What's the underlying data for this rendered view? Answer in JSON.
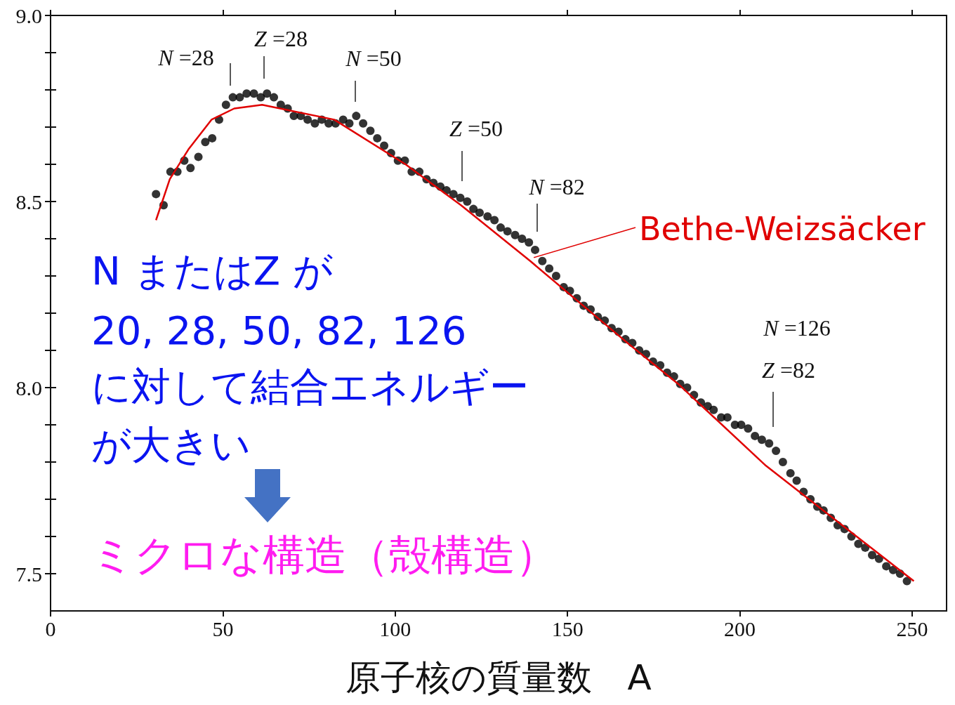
{
  "chart_data": {
    "type": "scatter",
    "xlabel": "原子核の質量数　A",
    "xlim": [
      0,
      260
    ],
    "xticks": [
      0,
      50,
      100,
      150,
      200,
      250
    ],
    "ylim": [
      7.4,
      9.0
    ],
    "yticks": [
      {
        "value": 7.5,
        "label": "7.5"
      },
      {
        "value": 7.6,
        "label": null
      },
      {
        "value": 7.7,
        "label": null
      },
      {
        "value": 7.8,
        "label": null
      },
      {
        "value": 7.9,
        "label": null
      },
      {
        "value": 8.0,
        "label": "8.0"
      },
      {
        "value": 8.1,
        "label": null
      },
      {
        "value": 8.2,
        "label": null
      },
      {
        "value": 8.3,
        "label": null
      },
      {
        "value": 8.4,
        "label": null
      },
      {
        "value": 8.5,
        "label": "8.5"
      },
      {
        "value": 8.6,
        "label": null
      },
      {
        "value": 8.7,
        "label": null
      },
      {
        "value": 8.8,
        "label": null
      },
      {
        "value": 8.9,
        "label": null
      },
      {
        "value": 9.0,
        "label": "9.0"
      }
    ],
    "grid": false,
    "legend": "right",
    "series": [
      {
        "type": "scatter",
        "marker": "circle",
        "color": "#000000",
        "x": [
          30.6,
          32.8,
          34.8,
          36.8,
          38.8,
          40.6,
          42.9,
          44.9,
          46.9,
          48.9,
          50.9,
          52.9,
          54.9,
          56.9,
          59.0,
          61.0,
          62.8,
          64.8,
          66.8,
          68.8,
          70.6,
          72.6,
          74.6,
          76.7,
          78.7,
          80.7,
          82.7,
          84.9,
          86.7,
          88.7,
          90.7,
          92.8,
          94.8,
          96.8,
          98.8,
          100.8,
          102.8,
          104.8,
          107.0,
          109.1,
          111.1,
          113.1,
          114.9,
          116.9,
          118.9,
          120.9,
          122.7,
          124.5,
          126.8,
          128.8,
          130.6,
          132.6,
          134.8,
          136.8,
          138.8,
          140.6,
          142.7,
          144.7,
          146.7,
          148.9,
          150.7,
          152.7,
          154.7,
          156.7,
          158.8,
          160.8,
          162.8,
          164.8,
          166.8,
          168.8,
          170.8,
          172.8,
          174.8,
          176.9,
          178.9,
          180.9,
          182.7,
          184.7,
          186.7,
          188.7,
          190.7,
          192.4,
          194.6,
          196.4,
          198.6,
          200.4,
          202.4,
          204.4,
          206.4,
          208.5,
          210.5,
          212.5,
          214.7,
          216.5,
          218.5,
          220.5,
          222.5,
          224.3,
          226.4,
          228.4,
          230.4,
          232.4,
          234.4,
          236.4,
          238.4,
          240.4,
          242.5,
          244.5,
          246.5,
          248.5
        ],
        "values": [
          8.52,
          8.49,
          8.58,
          8.58,
          8.61,
          8.59,
          8.62,
          8.66,
          8.67,
          8.72,
          8.76,
          8.78,
          8.78,
          8.79,
          8.79,
          8.78,
          8.79,
          8.78,
          8.76,
          8.75,
          8.73,
          8.73,
          8.72,
          8.71,
          8.72,
          8.71,
          8.71,
          8.72,
          8.71,
          8.73,
          8.71,
          8.69,
          8.67,
          8.65,
          8.63,
          8.61,
          8.61,
          8.58,
          8.58,
          8.56,
          8.55,
          8.54,
          8.53,
          8.52,
          8.51,
          8.5,
          8.48,
          8.47,
          8.46,
          8.45,
          8.43,
          8.42,
          8.41,
          8.4,
          8.39,
          8.37,
          8.34,
          8.32,
          8.3,
          8.27,
          8.26,
          8.24,
          8.22,
          8.21,
          8.19,
          8.18,
          8.16,
          8.15,
          8.13,
          8.12,
          8.1,
          8.09,
          8.07,
          8.06,
          8.04,
          8.03,
          8.01,
          8.0,
          7.98,
          7.96,
          7.95,
          7.94,
          7.92,
          7.92,
          7.9,
          7.9,
          7.89,
          7.87,
          7.86,
          7.85,
          7.83,
          7.8,
          7.77,
          7.75,
          7.72,
          7.7,
          7.68,
          7.67,
          7.65,
          7.63,
          7.62,
          7.6,
          7.58,
          7.57,
          7.55,
          7.54,
          7.52,
          7.51,
          7.5,
          7.48
        ]
      },
      {
        "type": "line",
        "name": "Bethe-Weizsäcker",
        "marker": "none",
        "color": "#e00000",
        "x": [
          30.6,
          34.6,
          40.0,
          46.7,
          53.3,
          61.4,
          82.3,
          103.0,
          119.1,
          139.2,
          167.4,
          182.1,
          207.6,
          250.5
        ],
        "values": [
          8.45,
          8.56,
          8.64,
          8.72,
          8.75,
          8.76,
          8.72,
          8.6,
          8.49,
          8.34,
          8.12,
          8.01,
          7.79,
          7.48
        ]
      }
    ],
    "annotations": [
      "N =28",
      "Z =28",
      "N =50",
      "Z =50",
      "N =82",
      "N =126",
      "Z =82",
      "N またはZ が",
      "20, 28, 50, 82, 126",
      "に対して結合エネルギー",
      "が大きい",
      "ミクロな構造（殻構造）"
    ]
  }
}
